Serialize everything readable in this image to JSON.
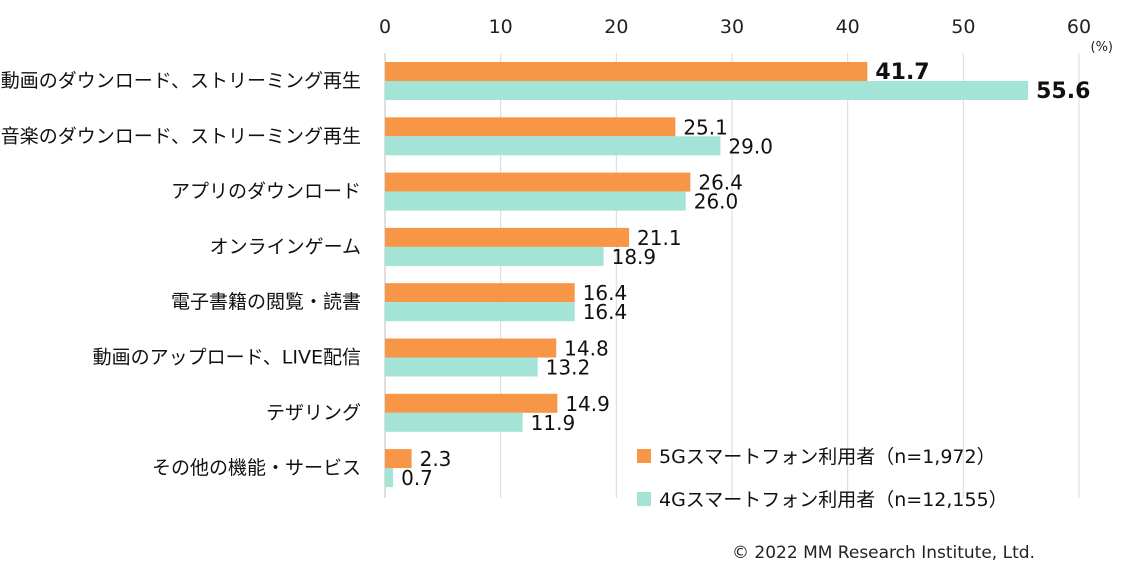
{
  "chart_data": {
    "type": "bar",
    "orientation": "horizontal",
    "unit_label": "(%)",
    "xlim": [
      0,
      60
    ],
    "x_ticks": [
      "0",
      "10",
      "20",
      "30",
      "40",
      "50",
      "60"
    ],
    "grid": true,
    "legend_position": "bottom-right",
    "categories": [
      "動画のダウンロード、ストリーミング再生",
      "音楽のダウンロード、ストリーミング再生",
      "アプリのダウンロード",
      "オンラインゲーム",
      "電子書籍の閲覧・読書",
      "動画のアップロード、LIVE配信",
      "テザリング",
      "その他の機能・サービス"
    ],
    "series": [
      {
        "name": "5Gスマートフォン利用者（n=1,972）",
        "color": "#f79646",
        "values": [
          41.7,
          25.1,
          26.4,
          21.1,
          16.4,
          14.8,
          14.9,
          2.3
        ],
        "labels": [
          "41.7",
          "25.1",
          "26.4",
          "21.1",
          "16.4",
          "14.8",
          "14.9",
          "2.3"
        ]
      },
      {
        "name": "4Gスマートフォン利用者（n=12,155）",
        "color": "#a3e4d7",
        "values": [
          55.6,
          29.0,
          26.0,
          18.9,
          16.4,
          13.2,
          11.9,
          0.7
        ],
        "labels": [
          "55.6",
          "29.0",
          "26.0",
          "18.9",
          "16.4",
          "13.2",
          "11.9",
          "0.7"
        ]
      }
    ],
    "bold_labels": [
      0
    ]
  },
  "footer": {
    "copyright": "© 2022 MM Research Institute, Ltd."
  }
}
